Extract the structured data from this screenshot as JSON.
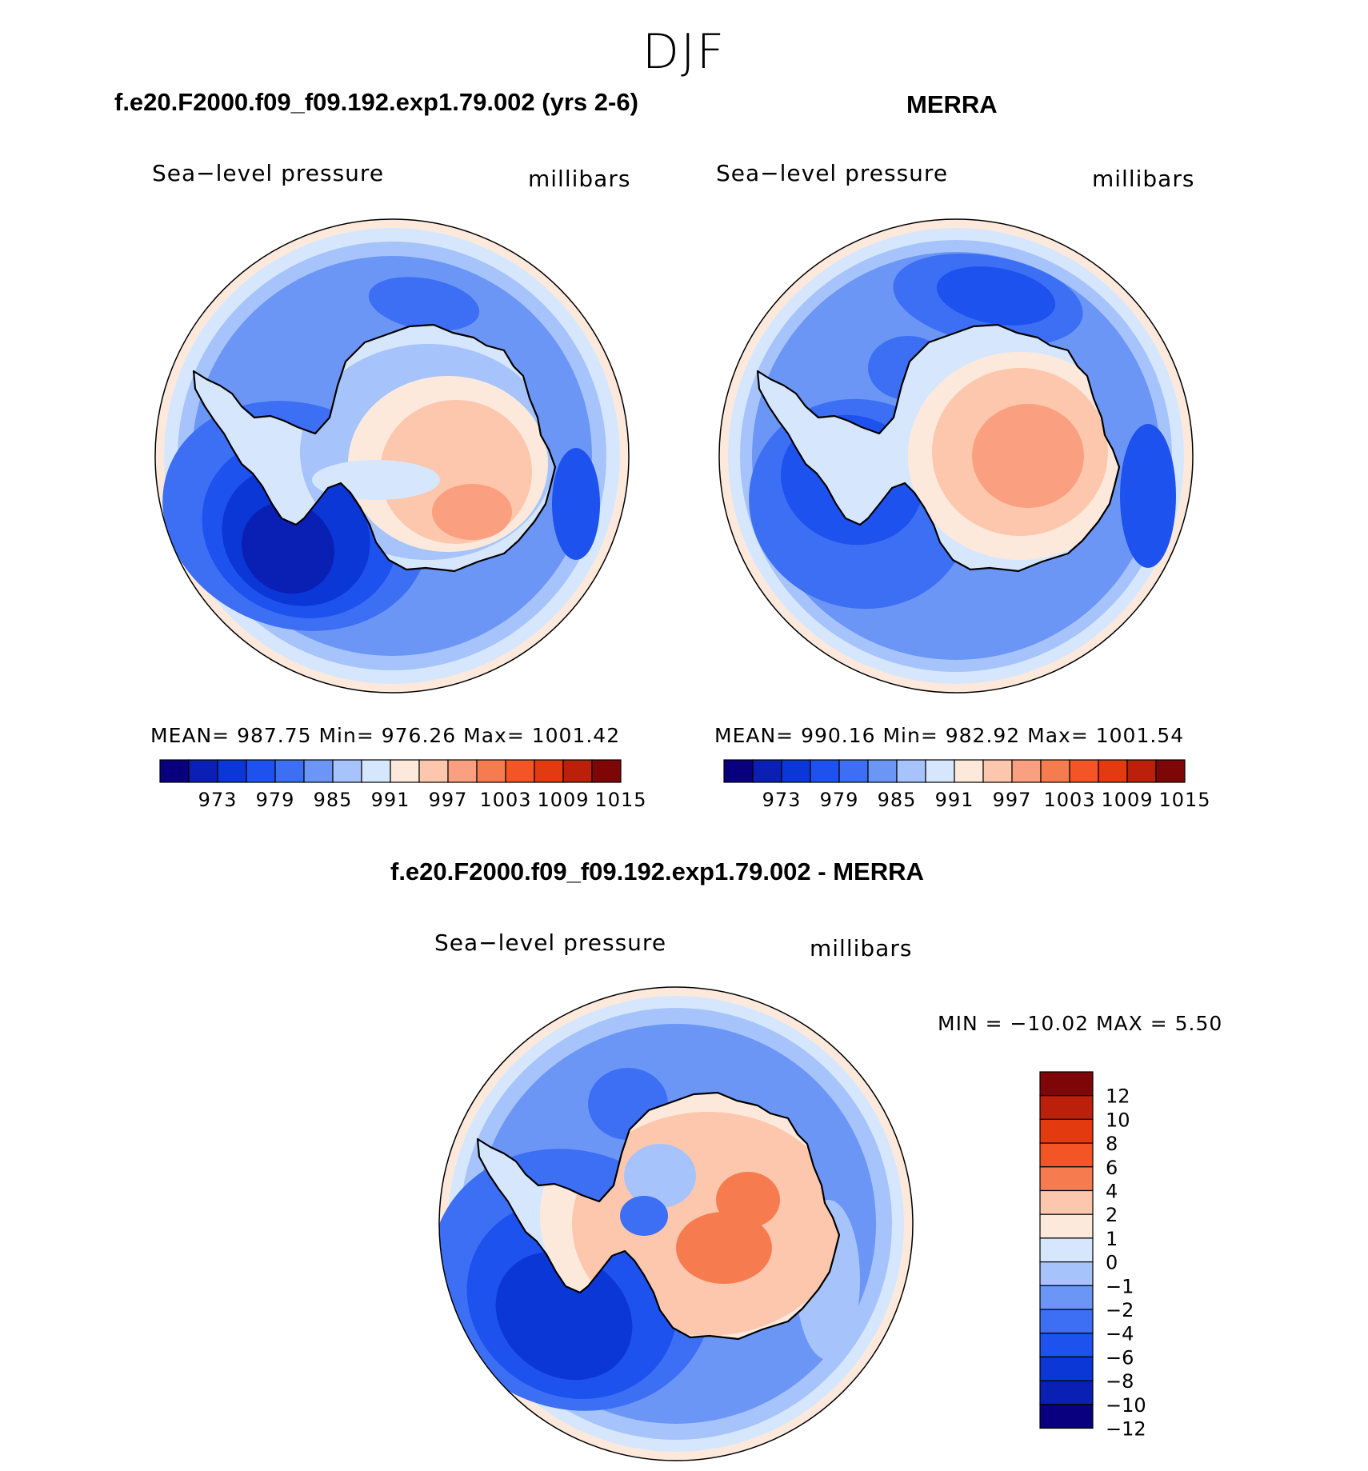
{
  "season": "DJF",
  "colors": {
    "abs_levels": [
      "#08007e",
      "#0a1fb4",
      "#0b37d6",
      "#1e52ee",
      "#3c6ff4",
      "#6c96f6",
      "#a6c4fb",
      "#d6e7fd",
      "#fde9dc",
      "#fcc7ad",
      "#fa9f7f",
      "#f67b4f",
      "#f35525",
      "#e33a10",
      "#ba200a",
      "#7e0606"
    ],
    "diff_levels": [
      "#08007e",
      "#0a1fb4",
      "#0b37d6",
      "#1e52ee",
      "#3c6ff4",
      "#6c96f6",
      "#a6c4fb",
      "#d6e7fd",
      "#fde9dc",
      "#fcc7ad",
      "#f67b4f",
      "#f35525",
      "#e33a10",
      "#ba200a",
      "#7e0606"
    ]
  },
  "panels": [
    {
      "title": "f.e20.F2000.f09_f09.192.exp1.79.002 (yrs 2-6)",
      "field": "Sea−level pressure",
      "units": "millibars",
      "stats": "MEAN=  987.75    Min=  976.26    Max=  1001.42",
      "ticks": [
        "973",
        "979",
        "985",
        "991",
        "997",
        "1003",
        "1009",
        "1015"
      ]
    },
    {
      "title": "MERRA",
      "field": "Sea−level pressure",
      "units": "millibars",
      "stats": "MEAN=  990.16    Min=  982.92    Max=  1001.54",
      "ticks": [
        "973",
        "979",
        "985",
        "991",
        "997",
        "1003",
        "1009",
        "1015"
      ]
    },
    {
      "title": "f.e20.F2000.f09_f09.192.exp1.79.002 - MERRA",
      "field": "Sea−level pressure",
      "units": "millibars",
      "stats": "MIN  =  −10.02  MAX  =      5.50",
      "ticks": [
        "12",
        "10",
        "8",
        "6",
        "4",
        "2",
        "1",
        "0",
        "−1",
        "−2",
        "−4",
        "−6",
        "−8",
        "−10",
        "−12"
      ]
    }
  ],
  "chart_data": [
    {
      "type": "heatmap",
      "projection": "south-polar stereographic",
      "title": "f.e20.F2000.f09_f09.192.exp1.79.002 (yrs 2-6)",
      "variable": "Sea−level pressure",
      "units": "millibars",
      "mean": 987.75,
      "min": 976.26,
      "max": 1001.42,
      "contour_levels": [
        973,
        976,
        979,
        982,
        985,
        988,
        991,
        994,
        997,
        1000,
        1003,
        1006,
        1009,
        1012,
        1015
      ]
    },
    {
      "type": "heatmap",
      "projection": "south-polar stereographic",
      "title": "MERRA",
      "variable": "Sea−level pressure",
      "units": "millibars",
      "mean": 990.16,
      "min": 982.92,
      "max": 1001.54,
      "contour_levels": [
        973,
        976,
        979,
        982,
        985,
        988,
        991,
        994,
        997,
        1000,
        1003,
        1006,
        1009,
        1012,
        1015
      ]
    },
    {
      "type": "heatmap",
      "projection": "south-polar stereographic",
      "title": "f.e20.F2000.f09_f09.192.exp1.79.002 - MERRA",
      "variable": "Sea−level pressure",
      "units": "millibars",
      "min": -10.02,
      "max": 5.5,
      "contour_levels": [
        -12,
        -10,
        -8,
        -6,
        -4,
        -2,
        -1,
        0,
        1,
        2,
        4,
        6,
        8,
        10,
        12
      ]
    }
  ]
}
